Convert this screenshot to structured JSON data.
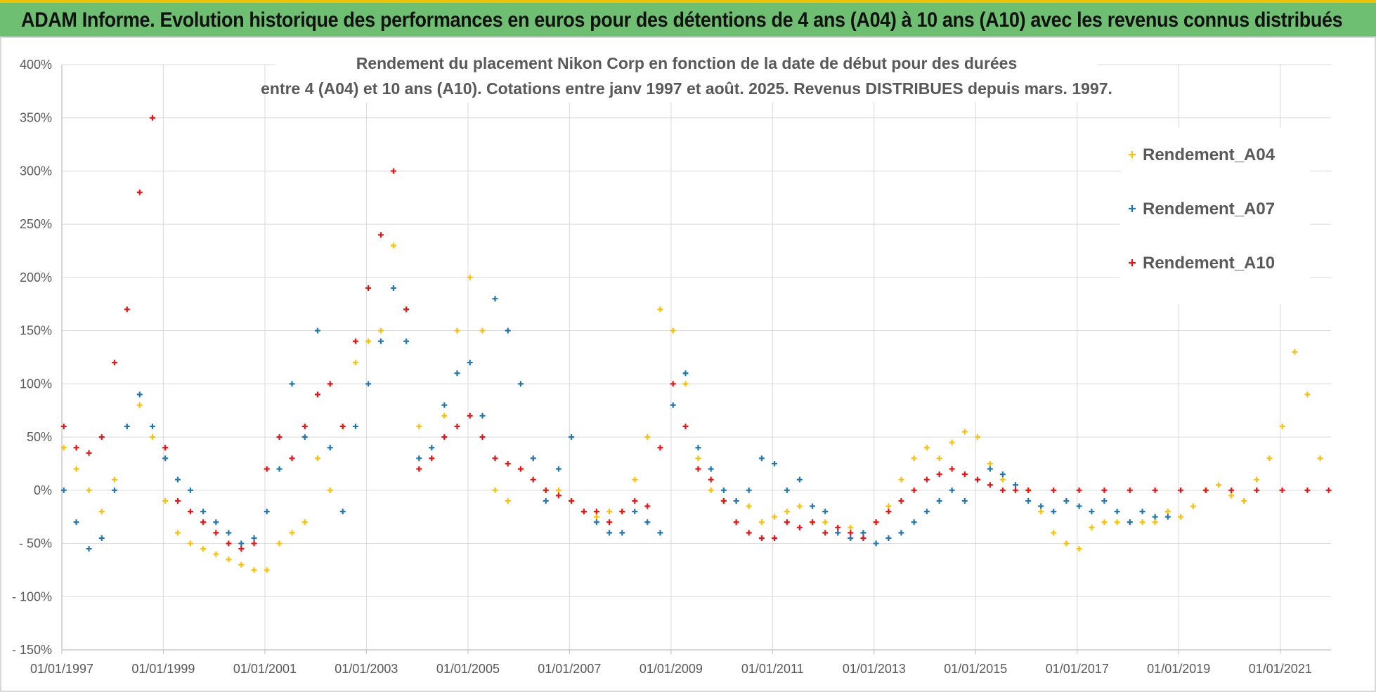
{
  "banner": {
    "title": "ADAM Informe. Evolution historique des performances en euros pour des détentions de 4 ans (A04) à 10 ans (A10) avec les revenus connus distribués",
    "bg_color": "#6fbf73",
    "accent_color": "#f2c200"
  },
  "chart_data": {
    "type": "scatter",
    "title_line1": "Rendement du placement Nikon Corp en fonction de la date de début pour des durées",
    "title_line2": "entre 4 (A04) et 10 ans (A10). Cotations entre janv 1997 et août. 2025. Revenus DISTRIBUES depuis mars. 1997.",
    "xlabel": "",
    "ylabel": "",
    "x_tick_labels": [
      "01/01/1997",
      "01/01/1999",
      "01/01/2001",
      "01/01/2003",
      "01/01/2005",
      "01/01/2007",
      "01/01/2009",
      "01/01/2011",
      "01/01/2013",
      "01/01/2015",
      "01/01/2017",
      "01/01/2019",
      "01/01/2021"
    ],
    "y_tick_labels": [
      "400%",
      "350%",
      "300%",
      "250%",
      "200%",
      "150%",
      "100%",
      "50%",
      "0%",
      "- 50%",
      "- 100%",
      "- 150%"
    ],
    "xlim": [
      "1997-01-01",
      "2022-01-01"
    ],
    "ylim": [
      -150,
      400
    ],
    "grid": true,
    "marker": "+",
    "legend_position": "right",
    "series": [
      {
        "name": "Rendement_A04",
        "color": "#ffc000",
        "x": [
          "1997-01",
          "1997-04",
          "1997-07",
          "1997-10",
          "1998-01",
          "1998-04",
          "1998-07",
          "1998-10",
          "1999-01",
          "1999-04",
          "1999-07",
          "1999-10",
          "2000-01",
          "2000-04",
          "2000-07",
          "2000-10",
          "2001-01",
          "2001-04",
          "2001-07",
          "2001-10",
          "2002-01",
          "2002-04",
          "2002-07",
          "2002-10",
          "2003-01",
          "2003-04",
          "2003-07",
          "2003-10",
          "2004-01",
          "2004-04",
          "2004-07",
          "2004-10",
          "2005-01",
          "2005-04",
          "2005-07",
          "2005-10",
          "2006-01",
          "2006-04",
          "2006-07",
          "2006-10",
          "2007-01",
          "2007-04",
          "2007-07",
          "2007-10",
          "2008-01",
          "2008-04",
          "2008-07",
          "2008-10",
          "2009-01",
          "2009-04",
          "2009-07",
          "2009-10",
          "2010-01",
          "2010-04",
          "2010-07",
          "2010-10",
          "2011-01",
          "2011-04",
          "2011-07",
          "2011-10",
          "2012-01",
          "2012-04",
          "2012-07",
          "2012-10",
          "2013-01",
          "2013-04",
          "2013-07",
          "2013-10",
          "2014-01",
          "2014-04",
          "2014-07",
          "2014-10",
          "2015-01",
          "2015-04",
          "2015-07",
          "2015-10",
          "2016-01",
          "2016-04",
          "2016-07",
          "2016-10",
          "2017-01",
          "2017-04",
          "2017-07",
          "2017-10",
          "2018-01",
          "2018-04",
          "2018-07",
          "2018-10",
          "2019-01",
          "2019-04",
          "2019-07",
          "2019-10",
          "2020-01",
          "2020-04",
          "2020-07",
          "2020-10",
          "2021-01",
          "2021-04",
          "2021-07",
          "2021-10"
        ],
        "y": [
          40,
          20,
          0,
          -20,
          10,
          60,
          80,
          50,
          -10,
          -40,
          -50,
          -55,
          -60,
          -65,
          -70,
          -75,
          -75,
          -50,
          -40,
          -30,
          30,
          0,
          60,
          120,
          140,
          150,
          230,
          170,
          60,
          40,
          70,
          150,
          200,
          150,
          0,
          -10,
          20,
          30,
          0,
          0,
          -10,
          -20,
          -25,
          -20,
          -20,
          10,
          50,
          170,
          150,
          100,
          30,
          0,
          -10,
          -10,
          -15,
          -30,
          -25,
          -20,
          -15,
          -30,
          -30,
          -40,
          -35,
          -40,
          -30,
          -15,
          10,
          30,
          40,
          30,
          45,
          55,
          50,
          25,
          10,
          5,
          0,
          -20,
          -40,
          -50,
          -55,
          -35,
          -30,
          -30,
          -30,
          -30,
          -30,
          -20,
          -25,
          -15,
          0,
          5,
          -5,
          -10,
          10,
          30,
          60,
          130,
          90,
          30
        ]
      },
      {
        "name": "Rendement_A07",
        "color": "#1f77b4",
        "x": [
          "1997-01",
          "1997-04",
          "1997-07",
          "1997-10",
          "1998-01",
          "1998-04",
          "1998-07",
          "1998-10",
          "1999-01",
          "1999-04",
          "1999-07",
          "1999-10",
          "2000-01",
          "2000-04",
          "2000-07",
          "2000-10",
          "2001-01",
          "2001-04",
          "2001-07",
          "2001-10",
          "2002-01",
          "2002-04",
          "2002-07",
          "2002-10",
          "2003-01",
          "2003-04",
          "2003-07",
          "2003-10",
          "2004-01",
          "2004-04",
          "2004-07",
          "2004-10",
          "2005-01",
          "2005-04",
          "2005-07",
          "2005-10",
          "2006-01",
          "2006-04",
          "2006-07",
          "2006-10",
          "2007-01",
          "2007-04",
          "2007-07",
          "2007-10",
          "2008-01",
          "2008-04",
          "2008-07",
          "2008-10",
          "2009-01",
          "2009-04",
          "2009-07",
          "2009-10",
          "2010-01",
          "2010-04",
          "2010-07",
          "2010-10",
          "2011-01",
          "2011-04",
          "2011-07",
          "2011-10",
          "2012-01",
          "2012-04",
          "2012-07",
          "2012-10",
          "2013-01",
          "2013-04",
          "2013-07",
          "2013-10",
          "2014-01",
          "2014-04",
          "2014-07",
          "2014-10",
          "2015-01",
          "2015-04",
          "2015-07",
          "2015-10",
          "2016-01",
          "2016-04",
          "2016-07",
          "2016-10",
          "2017-01",
          "2017-04",
          "2017-07",
          "2017-10",
          "2018-01",
          "2018-04",
          "2018-07",
          "2018-10"
        ],
        "y": [
          0,
          -30,
          -55,
          -45,
          0,
          60,
          90,
          60,
          30,
          10,
          0,
          -20,
          -30,
          -40,
          -50,
          -45,
          -20,
          20,
          100,
          50,
          150,
          40,
          -20,
          60,
          100,
          140,
          190,
          140,
          30,
          40,
          80,
          110,
          120,
          70,
          180,
          150,
          100,
          30,
          -10,
          20,
          50,
          -20,
          -30,
          -40,
          -40,
          -20,
          -30,
          -40,
          80,
          110,
          40,
          20,
          0,
          -10,
          0,
          30,
          25,
          0,
          10,
          -15,
          -20,
          -40,
          -45,
          -40,
          -50,
          -45,
          -40,
          -30,
          -20,
          -10,
          0,
          -10,
          10,
          20,
          15,
          5,
          -10,
          -15,
          -20,
          -10,
          -15,
          -20,
          -10,
          -20,
          -30,
          -20,
          -25,
          -25
        ]
      },
      {
        "name": "Rendement_A10",
        "color": "#ee1111",
        "x": [
          "1997-01",
          "1997-04",
          "1997-07",
          "1997-10",
          "1998-01",
          "1998-04",
          "1998-07",
          "1998-10",
          "1999-01",
          "1999-04",
          "1999-07",
          "1999-10",
          "2000-01",
          "2000-04",
          "2000-07",
          "2000-10",
          "2001-01",
          "2001-04",
          "2001-07",
          "2001-10",
          "2002-01",
          "2002-04",
          "2002-07",
          "2002-10",
          "2003-01",
          "2003-04",
          "2003-07",
          "2003-10",
          "2004-01",
          "2004-04",
          "2004-07",
          "2004-10",
          "2005-01",
          "2005-04",
          "2005-07",
          "2005-10",
          "2006-01",
          "2006-04",
          "2006-07",
          "2006-10",
          "2007-01",
          "2007-04",
          "2007-07",
          "2007-10",
          "2008-01",
          "2008-04",
          "2008-07",
          "2008-10",
          "2009-01",
          "2009-04",
          "2009-07",
          "2009-10",
          "2010-01",
          "2010-04",
          "2010-07",
          "2010-10",
          "2011-01",
          "2011-04",
          "2011-07",
          "2011-10",
          "2012-01",
          "2012-04",
          "2012-07",
          "2012-10",
          "2013-01",
          "2013-04",
          "2013-07",
          "2013-10",
          "2014-01",
          "2014-04",
          "2014-07",
          "2014-10",
          "2015-01",
          "2015-04",
          "2015-07",
          "2015-10",
          "2016-01",
          "2016-07",
          "2017-01",
          "2017-07",
          "2018-01",
          "2018-07",
          "2019-01",
          "2019-07",
          "2020-01",
          "2020-07",
          "2021-01",
          "2021-07",
          "2021-12"
        ],
        "y": [
          60,
          40,
          35,
          50,
          120,
          170,
          280,
          350,
          40,
          -10,
          -20,
          -30,
          -40,
          -50,
          -55,
          -50,
          20,
          50,
          30,
          60,
          90,
          100,
          60,
          140,
          190,
          240,
          300,
          170,
          20,
          30,
          50,
          60,
          70,
          50,
          30,
          25,
          20,
          10,
          0,
          -5,
          -10,
          -20,
          -20,
          -30,
          -20,
          -10,
          -15,
          40,
          100,
          60,
          20,
          10,
          -10,
          -30,
          -40,
          -45,
          -45,
          -30,
          -35,
          -30,
          -40,
          -35,
          -40,
          -45,
          -30,
          -20,
          -10,
          0,
          10,
          15,
          20,
          15,
          10,
          5,
          0,
          0,
          0,
          0,
          0,
          0,
          0,
          0,
          0,
          0,
          0,
          0,
          0,
          0,
          0
        ]
      }
    ]
  }
}
